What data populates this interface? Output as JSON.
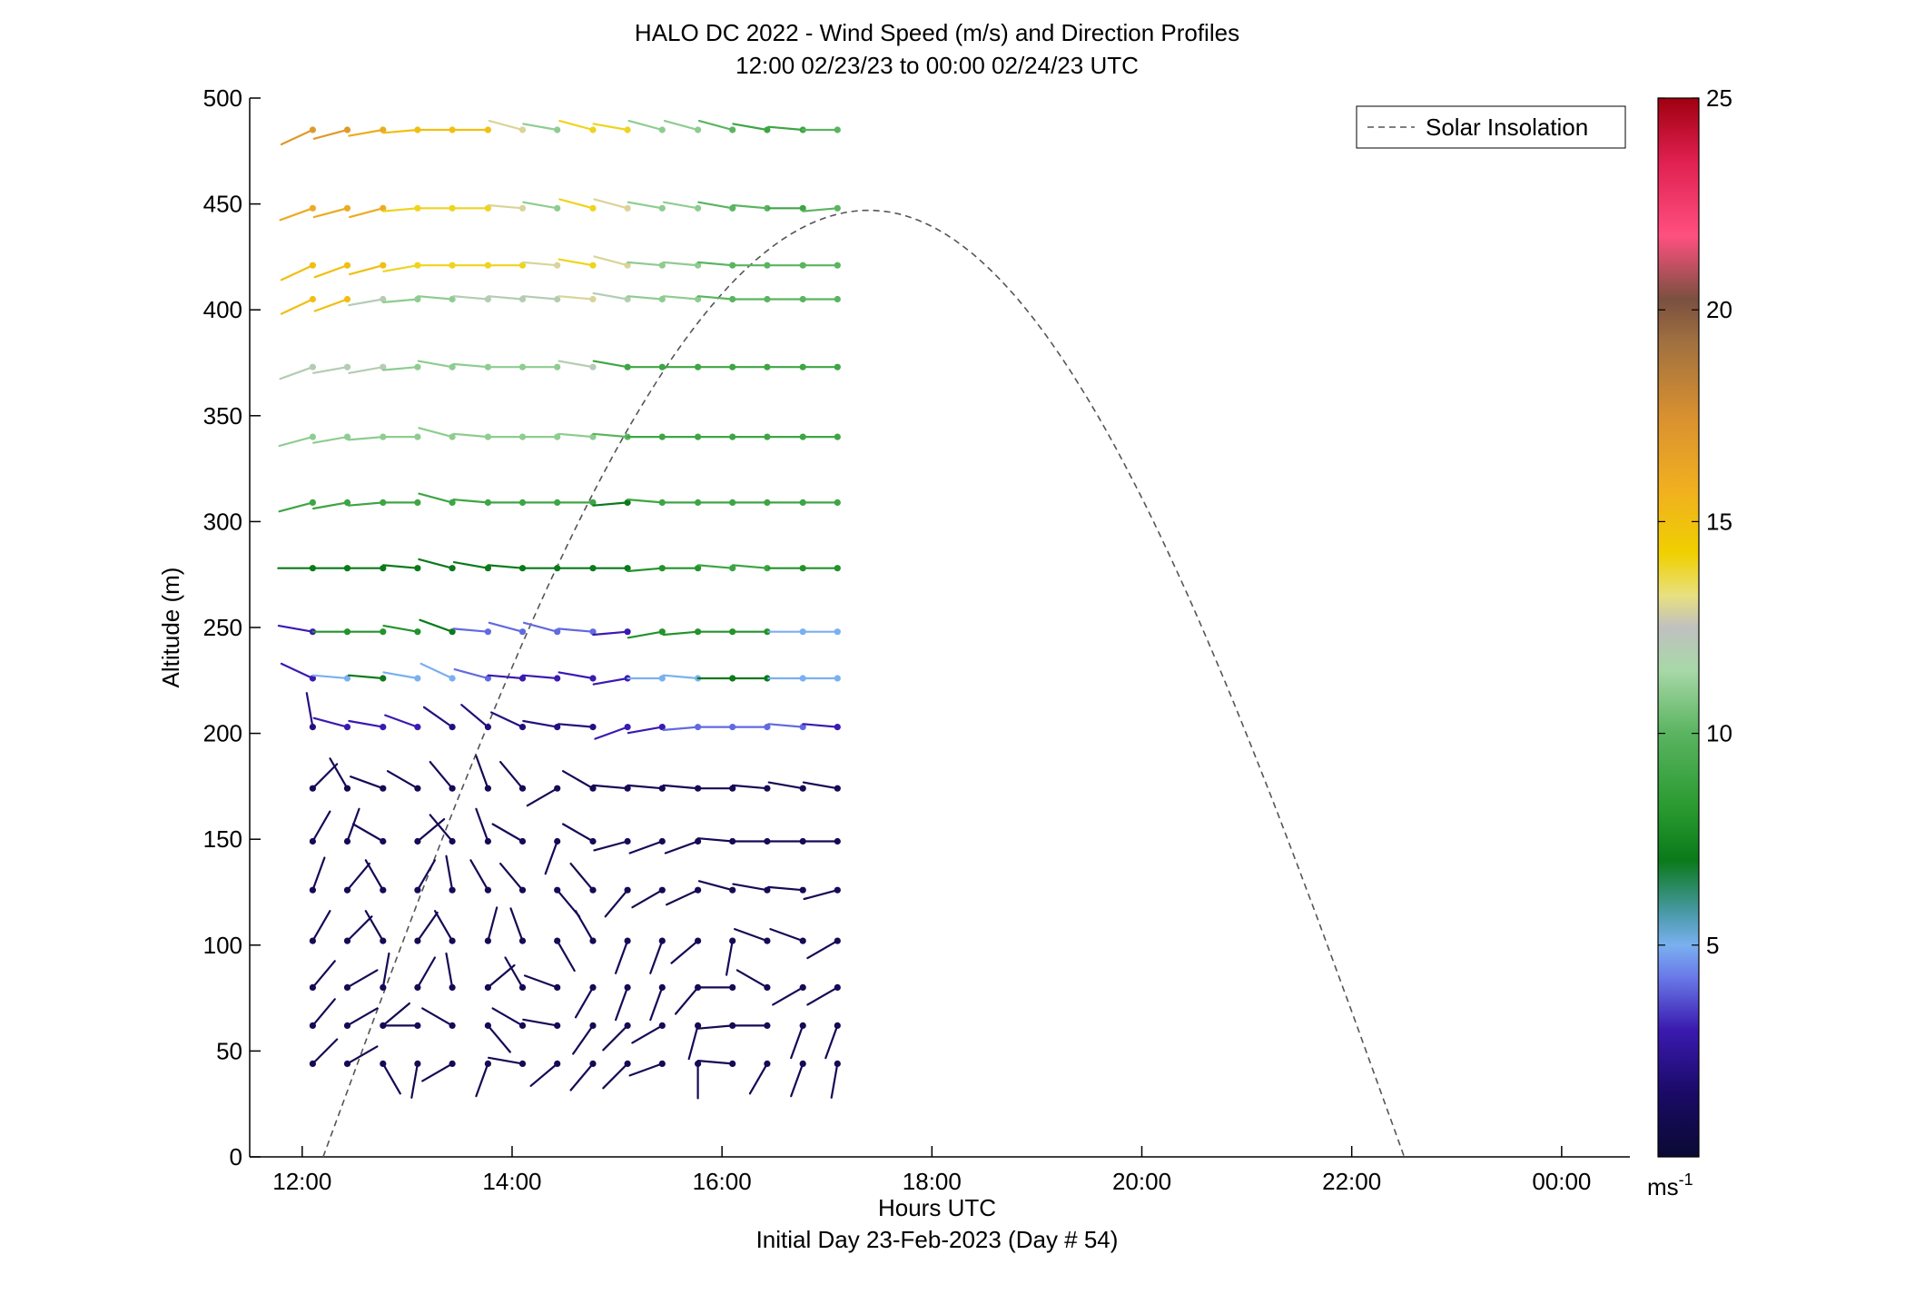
{
  "chart_data": {
    "type": "wind-barb-profile",
    "title": "HALO DC 2022 - Wind Speed (m/s) and Direction Profiles",
    "subtitle": "12:00 02/23/23 to 00:00 02/24/23  UTC",
    "xlabel": "Hours UTC",
    "xlabel2": "Initial Day 23-Feb-2023 (Day # 54)",
    "ylabel": "Altitude (m)",
    "xlim": [
      11.5,
      24.65
    ],
    "ylim": [
      0,
      500
    ],
    "x_ticks": [
      12,
      14,
      16,
      18,
      20,
      22,
      24
    ],
    "x_tick_labels": [
      "12:00",
      "14:00",
      "16:00",
      "18:00",
      "20:00",
      "22:00",
      "00:00"
    ],
    "y_ticks": [
      0,
      50,
      100,
      150,
      200,
      250,
      300,
      350,
      400,
      450,
      500
    ],
    "y_tick_labels": [
      "0",
      "50",
      "100",
      "150",
      "200",
      "250",
      "300",
      "350",
      "400",
      "450",
      "500"
    ],
    "legend": {
      "entries": [
        "Solar Insolation"
      ],
      "placement": "top-right"
    },
    "colorbar": {
      "min": 0,
      "max": 25,
      "ticks": [
        5,
        10,
        15,
        20,
        25
      ],
      "tick_labels": [
        "5",
        "10",
        "15",
        "20",
        "25"
      ],
      "unit_label": "ms",
      "unit_exponent": "-1"
    },
    "solar_insolation": {
      "style": "dashed",
      "color": "#555555",
      "x_start": 12.2,
      "x_peak": 17.4,
      "x_end": 22.5,
      "y_peak": 447
    },
    "profile_times": [
      12.1,
      12.43,
      12.77,
      13.1,
      13.43,
      13.77,
      14.1,
      14.43,
      14.77,
      15.1,
      15.43,
      15.77,
      16.1,
      16.43,
      16.77,
      17.1
    ],
    "levels": [
      {
        "altitude": 485,
        "speed": [
          17,
          17,
          16,
          15,
          15,
          15,
          13,
          11,
          14,
          14,
          11,
          11,
          10,
          9,
          9,
          10
        ],
        "direction": [
          245,
          255,
          260,
          265,
          270,
          270,
          285,
          280,
          285,
          280,
          285,
          285,
          285,
          280,
          275,
          270
        ]
      },
      {
        "altitude": 448,
        "speed": [
          16,
          16,
          16,
          14,
          14,
          14,
          13,
          11,
          14,
          13,
          11,
          11,
          10,
          10,
          9,
          10
        ],
        "direction": [
          250,
          255,
          255,
          265,
          270,
          270,
          275,
          280,
          285,
          285,
          280,
          280,
          280,
          275,
          270,
          265
        ]
      },
      {
        "altitude": 421,
        "speed": [
          15,
          15,
          15,
          14,
          14,
          14,
          14,
          13,
          14,
          13,
          11,
          11,
          10,
          10,
          10,
          10
        ],
        "direction": [
          245,
          250,
          255,
          260,
          270,
          270,
          270,
          275,
          280,
          285,
          275,
          275,
          275,
          270,
          270,
          270
        ]
      },
      {
        "altitude": 405,
        "speed": [
          15,
          15,
          12,
          11,
          11,
          12,
          12,
          12,
          13,
          12,
          11,
          11,
          10,
          10,
          10,
          10
        ],
        "direction": [
          245,
          250,
          260,
          265,
          275,
          275,
          275,
          275,
          275,
          280,
          275,
          275,
          275,
          270,
          270,
          270
        ]
      },
      {
        "altitude": 373,
        "speed": [
          12,
          12,
          12,
          11,
          11,
          11,
          11,
          11,
          12,
          9,
          9,
          9,
          9,
          9,
          9,
          9
        ],
        "direction": [
          250,
          260,
          260,
          265,
          280,
          275,
          270,
          270,
          280,
          280,
          270,
          270,
          270,
          270,
          270,
          270
        ]
      },
      {
        "altitude": 340,
        "speed": [
          11,
          11,
          11,
          11,
          11,
          11,
          11,
          11,
          11,
          10,
          9,
          9,
          9,
          9,
          9,
          9
        ],
        "direction": [
          255,
          260,
          265,
          270,
          285,
          275,
          270,
          270,
          275,
          275,
          270,
          270,
          270,
          270,
          270,
          270
        ]
      },
      {
        "altitude": 309,
        "speed": [
          9,
          9,
          9,
          9,
          9,
          9,
          9,
          9,
          9,
          7,
          9,
          9,
          9,
          9,
          9,
          9
        ],
        "direction": [
          255,
          260,
          265,
          270,
          285,
          275,
          270,
          270,
          270,
          265,
          275,
          270,
          270,
          270,
          270,
          270
        ]
      },
      {
        "altitude": 278,
        "speed": [
          7,
          7,
          7,
          7,
          7,
          7,
          7,
          7,
          7,
          7,
          8,
          8,
          9,
          9,
          8,
          8
        ],
        "direction": [
          270,
          270,
          270,
          275,
          285,
          280,
          275,
          270,
          270,
          270,
          265,
          270,
          275,
          275,
          270,
          270
        ]
      },
      {
        "altitude": 248,
        "speed": [
          3,
          8,
          8,
          8,
          7,
          4,
          4,
          4,
          4,
          3,
          8,
          8,
          8,
          8,
          5,
          5
        ],
        "direction": [
          280,
          270,
          270,
          280,
          290,
          275,
          285,
          285,
          275,
          265,
          260,
          265,
          270,
          270,
          270,
          270
        ]
      },
      {
        "altitude": 226,
        "speed": [
          3,
          5,
          7,
          5,
          5,
          4,
          3,
          3,
          3,
          3,
          5,
          5,
          7,
          7,
          5,
          5
        ],
        "direction": [
          295,
          275,
          275,
          280,
          295,
          285,
          275,
          275,
          280,
          260,
          270,
          275,
          270,
          270,
          270,
          270
        ]
      },
      {
        "altitude": 203,
        "speed": [
          2,
          3,
          3,
          3,
          2,
          2,
          2,
          2,
          2,
          3,
          3,
          4,
          4,
          4,
          4,
          3
        ],
        "direction": [
          350,
          285,
          280,
          290,
          305,
          310,
          295,
          280,
          275,
          250,
          260,
          265,
          270,
          270,
          275,
          275
        ]
      },
      {
        "altitude": 174,
        "speed": [
          1,
          1,
          1,
          1,
          1,
          1,
          1,
          1,
          1,
          1,
          1,
          1,
          1,
          1,
          1,
          1
        ],
        "direction": [
          45,
          330,
          290,
          300,
          320,
          340,
          320,
          240,
          300,
          275,
          275,
          275,
          270,
          275,
          280,
          280
        ]
      },
      {
        "altitude": 149,
        "speed": [
          1,
          1,
          1,
          1,
          1,
          1,
          1,
          1,
          1,
          1,
          1,
          1,
          1,
          1,
          1,
          1
        ],
        "direction": [
          30,
          20,
          300,
          50,
          320,
          340,
          300,
          200,
          300,
          255,
          250,
          250,
          275,
          270,
          270,
          270
        ]
      },
      {
        "altitude": 126,
        "speed": [
          1,
          1,
          1,
          1,
          1,
          1,
          1,
          1,
          1,
          1,
          1,
          1,
          1,
          1,
          1,
          1
        ],
        "direction": [
          20,
          40,
          330,
          30,
          350,
          330,
          320,
          140,
          320,
          220,
          240,
          245,
          285,
          280,
          275,
          255
        ]
      },
      {
        "altitude": 102,
        "speed": [
          1,
          1,
          1,
          1,
          1,
          1,
          1,
          1,
          1,
          1,
          1,
          1,
          1,
          1,
          1,
          1
        ],
        "direction": [
          30,
          45,
          330,
          35,
          330,
          15,
          340,
          150,
          330,
          200,
          200,
          230,
          190,
          290,
          290,
          240
        ]
      },
      {
        "altitude": 80,
        "speed": [
          1,
          1,
          1,
          1,
          1,
          1,
          1,
          1,
          1,
          1,
          1,
          1,
          1,
          1,
          1,
          1
        ],
        "direction": [
          40,
          60,
          10,
          30,
          350,
          50,
          330,
          290,
          210,
          200,
          200,
          220,
          270,
          300,
          240,
          240
        ]
      },
      {
        "altitude": 62,
        "speed": [
          1,
          1,
          1,
          1,
          1,
          1,
          1,
          1,
          1,
          1,
          1,
          1,
          1,
          1,
          1,
          1
        ],
        "direction": [
          40,
          60,
          50,
          270,
          300,
          140,
          300,
          280,
          215,
          225,
          240,
          195,
          265,
          270,
          200,
          200
        ]
      },
      {
        "altitude": 44,
        "speed": [
          1,
          1,
          1,
          1,
          1,
          1,
          1,
          1,
          1,
          1,
          1,
          1,
          1,
          1,
          1,
          1
        ],
        "direction": [
          45,
          60,
          150,
          190,
          240,
          200,
          280,
          230,
          220,
          225,
          250,
          180,
          275,
          210,
          200,
          190
        ]
      }
    ]
  }
}
